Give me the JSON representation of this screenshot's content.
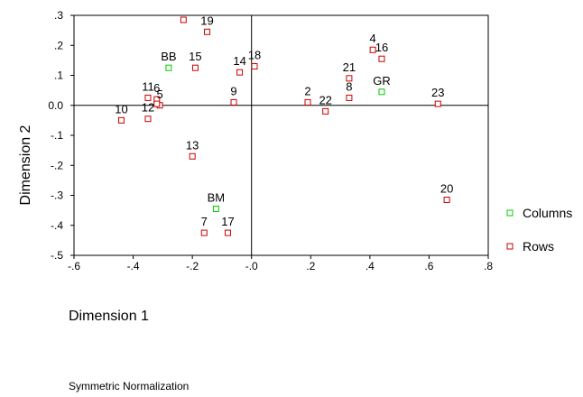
{
  "chart_data": {
    "type": "scatter",
    "xlabel": "Dimension 1",
    "ylabel": "Dimension 2",
    "xlim": [
      -0.6,
      0.8
    ],
    "ylim": [
      -0.5,
      0.3
    ],
    "x_ticks": [
      "-.6",
      "-.4",
      "-.2",
      "-.0",
      ".2",
      ".4",
      ".6",
      ".8"
    ],
    "y_ticks": [
      ".3",
      ".2",
      ".1",
      "0.0",
      "-.1",
      "-.2",
      "-.3",
      "-.4",
      "-.5"
    ],
    "grid": false,
    "reference_lines": {
      "x": 0,
      "y": 0
    },
    "legend_position": "right",
    "footnote": "Symmetric Normalization",
    "series": [
      {
        "name": "Columns",
        "color": "#00cc00",
        "points": [
          {
            "label": "BB",
            "x": -0.28,
            "y": 0.125
          },
          {
            "label": "GR",
            "x": 0.44,
            "y": 0.045
          },
          {
            "label": "BM",
            "x": -0.12,
            "y": -0.345
          }
        ]
      },
      {
        "name": "Rows",
        "color": "#cc0000",
        "points": [
          {
            "label": "19",
            "x": -0.15,
            "y": 0.245
          },
          {
            "label": "",
            "x": -0.23,
            "y": 0.285
          },
          {
            "label": "15",
            "x": -0.19,
            "y": 0.125
          },
          {
            "label": "14",
            "x": -0.04,
            "y": 0.11
          },
          {
            "label": "18",
            "x": 0.01,
            "y": 0.13
          },
          {
            "label": "4",
            "x": 0.41,
            "y": 0.185
          },
          {
            "label": "16",
            "x": 0.44,
            "y": 0.155
          },
          {
            "label": "21",
            "x": 0.33,
            "y": 0.09
          },
          {
            "label": "8",
            "x": 0.33,
            "y": 0.025
          },
          {
            "label": "2",
            "x": 0.19,
            "y": 0.01
          },
          {
            "label": "22",
            "x": 0.25,
            "y": -0.02
          },
          {
            "label": "23",
            "x": 0.63,
            "y": 0.005
          },
          {
            "label": "9",
            "x": -0.06,
            "y": 0.01
          },
          {
            "label": "11",
            "x": -0.35,
            "y": 0.025
          },
          {
            "label": "6",
            "x": -0.32,
            "y": 0.02
          },
          {
            "label": "5",
            "x": -0.31,
            "y": 0.0
          },
          {
            "label": "",
            "x": -0.32,
            "y": 0.005
          },
          {
            "label": "12",
            "x": -0.35,
            "y": -0.045
          },
          {
            "label": "10",
            "x": -0.44,
            "y": -0.05
          },
          {
            "label": "13",
            "x": -0.2,
            "y": -0.17
          },
          {
            "label": "20",
            "x": 0.66,
            "y": -0.315
          },
          {
            "label": "7",
            "x": -0.16,
            "y": -0.425
          },
          {
            "label": "17",
            "x": -0.08,
            "y": -0.425
          }
        ]
      }
    ]
  }
}
